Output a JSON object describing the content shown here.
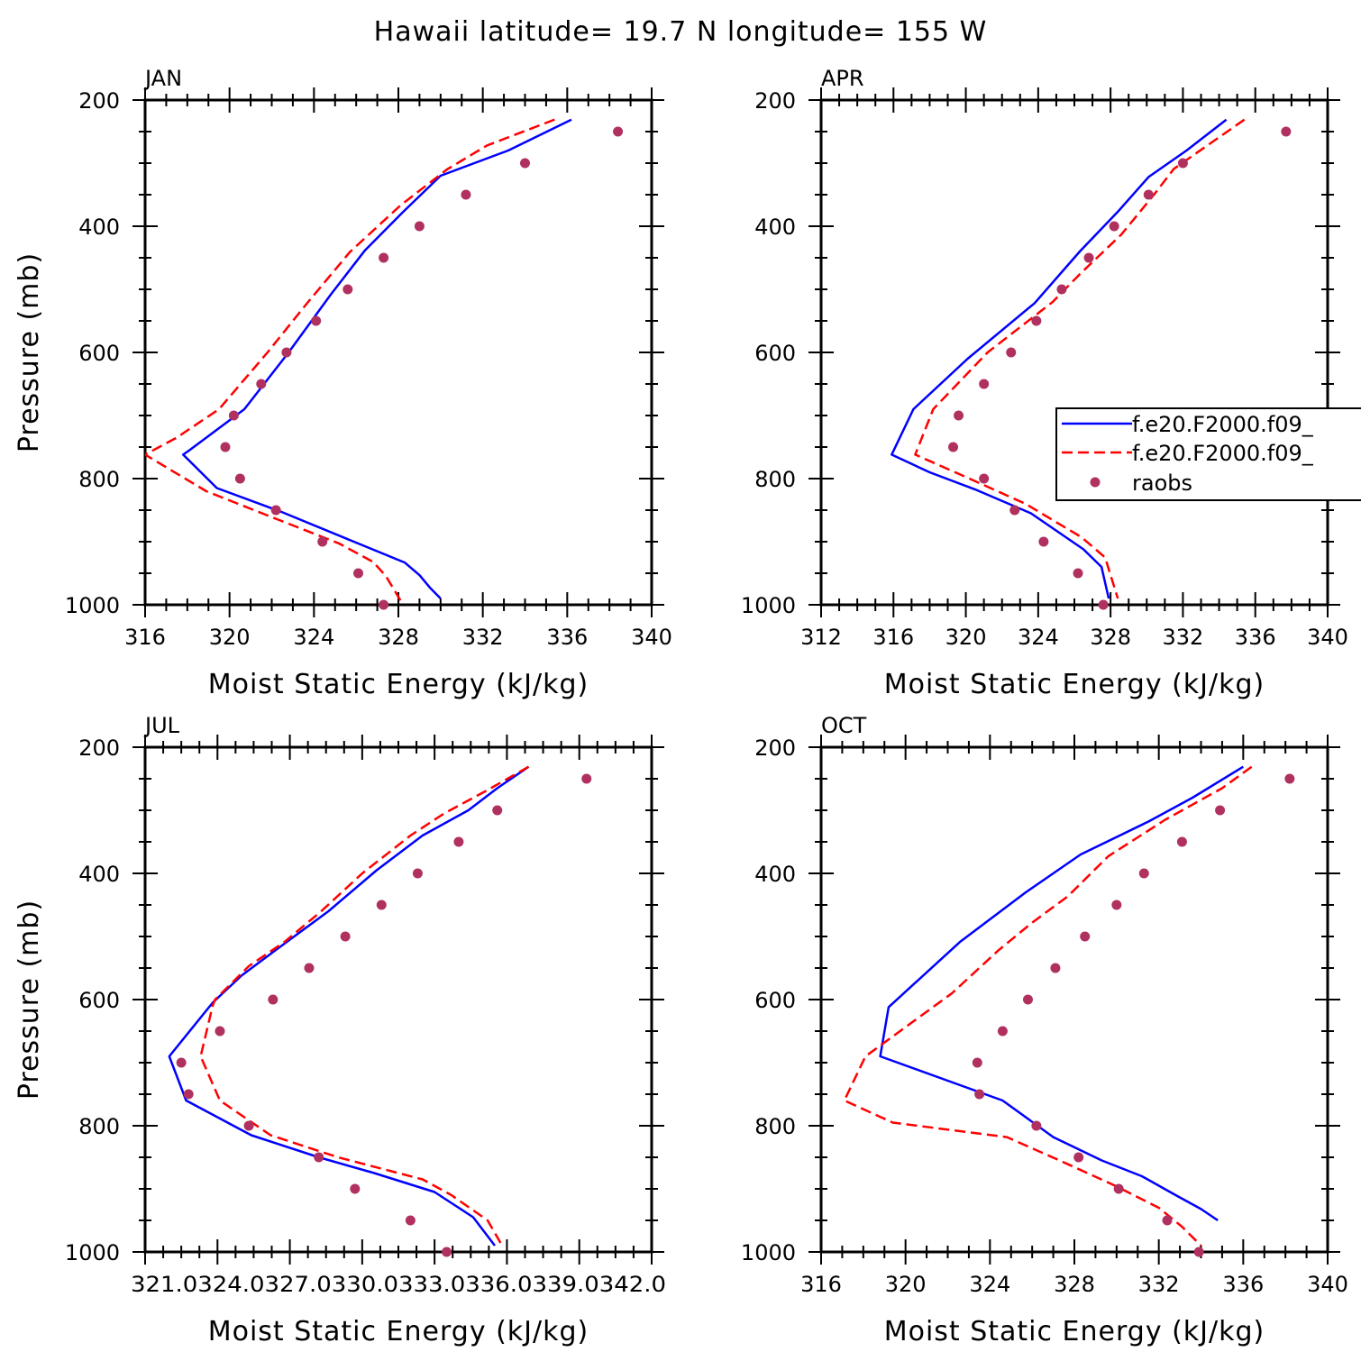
{
  "title": "Hawaii  latitude= 19.7 N longitude= 155 W",
  "legend": {
    "entries": [
      {
        "label": "f.e20.F2000.f09_",
        "color": "#0000ff",
        "style": "solid"
      },
      {
        "label": "f.e20.F2000.f09_",
        "color": "#ff0000",
        "style": "dashed"
      },
      {
        "label": "raobs",
        "color": "#b03060",
        "style": "marker"
      }
    ]
  },
  "colors": {
    "model_solid": "#0000ff",
    "model_dashed": "#ff0000",
    "raobs": "#b03060"
  },
  "chart_data": [
    {
      "type": "line",
      "title": "JAN",
      "xlabel": "Moist Static Energy (kJ/kg)",
      "ylabel": "Pressure (mb)",
      "xlim": [
        316,
        340
      ],
      "ylim": [
        200,
        1000
      ],
      "y_inverted": true,
      "xticks": [
        316,
        320,
        324,
        328,
        332,
        336,
        340
      ],
      "xtick_labels": [
        "316",
        "320",
        "324",
        "328",
        "332",
        "336",
        "340"
      ],
      "yticks": [
        200,
        400,
        600,
        800,
        1000
      ],
      "ytick_labels": [
        "200",
        "400",
        "600",
        "800",
        "1000"
      ],
      "series": [
        {
          "color": "#0000ff",
          "style": "solid",
          "x": [
            336.2,
            333.2,
            330.0,
            328.2,
            326.4,
            324.8,
            322.8,
            320.7,
            318.1,
            317.8,
            319.4,
            322.4,
            326.4,
            328.3,
            329.0,
            329.5,
            330.0
          ],
          "y": [
            231,
            280,
            320,
            378,
            439,
            508,
            600,
            690,
            755,
            762,
            815,
            852,
            907,
            933,
            953,
            973,
            990
          ]
        },
        {
          "color": "#ff0000",
          "style": "dashed",
          "x": [
            335.4,
            332.2,
            330.3,
            328.1,
            325.7,
            323.6,
            321.8,
            319.5,
            317.5,
            316.0,
            318.9,
            322.3,
            325.2,
            326.8,
            327.4,
            328.1
          ],
          "y": [
            231,
            272,
            310,
            367,
            441,
            525,
            600,
            690,
            735,
            762,
            820,
            865,
            903,
            932,
            954,
            993
          ]
        },
        {
          "color": "#b03060",
          "style": "marker",
          "x": [
            338.4,
            334.0,
            331.2,
            329.0,
            327.3,
            325.6,
            324.1,
            322.7,
            321.5,
            320.2,
            319.8,
            320.5,
            322.2,
            324.4,
            326.1,
            327.3
          ],
          "y": [
            250,
            300,
            350,
            400,
            450,
            500,
            550,
            600,
            650,
            700,
            750,
            800,
            850,
            900,
            950,
            1000
          ]
        }
      ]
    },
    {
      "type": "line",
      "title": "APR",
      "xlabel": "Moist Static Energy (kJ/kg)",
      "ylabel": "",
      "xlim": [
        312,
        340
      ],
      "ylim": [
        200,
        1000
      ],
      "y_inverted": true,
      "xticks": [
        312,
        316,
        320,
        324,
        328,
        332,
        336,
        340
      ],
      "xtick_labels": [
        "312",
        "316",
        "320",
        "324",
        "328",
        "332",
        "336",
        "340"
      ],
      "yticks": [
        200,
        400,
        600,
        800,
        1000
      ],
      "ytick_labels": [
        "200",
        "400",
        "600",
        "800",
        "1000"
      ],
      "series": [
        {
          "color": "#0000ff",
          "style": "solid",
          "x": [
            334.4,
            332.2,
            330.1,
            328.4,
            326.3,
            323.8,
            320.1,
            317.1,
            315.9,
            318.0,
            320.5,
            323.6,
            326.5,
            327.5,
            327.9
          ],
          "y": [
            231,
            280,
            322,
            377,
            440,
            522,
            610,
            690,
            762,
            790,
            817,
            855,
            912,
            940,
            990
          ]
        },
        {
          "color": "#ff0000",
          "style": "dashed",
          "x": [
            335.4,
            333.2,
            331.5,
            330.4,
            328.6,
            326.3,
            324.8,
            321.2,
            318.2,
            317.2,
            320.2,
            323.3,
            326.4,
            327.7,
            328.4
          ],
          "y": [
            231,
            275,
            309,
            350,
            413,
            476,
            520,
            600,
            690,
            762,
            800,
            840,
            893,
            925,
            990
          ]
        },
        {
          "color": "#b03060",
          "style": "marker",
          "x": [
            337.7,
            332.0,
            330.1,
            328.2,
            326.8,
            325.3,
            323.9,
            322.5,
            321.0,
            319.6,
            319.3,
            321.0,
            322.7,
            324.3,
            326.2,
            327.6
          ],
          "y": [
            250,
            300,
            350,
            400,
            450,
            500,
            550,
            600,
            650,
            700,
            750,
            800,
            850,
            900,
            950,
            1000
          ]
        }
      ]
    },
    {
      "type": "line",
      "title": "JUL",
      "xlabel": "Moist Static Energy (kJ/kg)",
      "ylabel": "Pressure (mb)",
      "xlim": [
        321.0,
        342.0
      ],
      "ylim": [
        200,
        1000
      ],
      "y_inverted": true,
      "xticks": [
        321.0,
        324.0,
        327.0,
        330.0,
        333.0,
        336.0,
        339.0,
        342.0
      ],
      "xtick_labels": [
        "321.0",
        "324.0",
        "327.0",
        "330.0",
        "333.0",
        "336.0",
        "339.0",
        "342.0"
      ],
      "xtick_text": "321.0324.0327.0330.0333.0336.0339.0342.0",
      "yticks": [
        200,
        400,
        600,
        800,
        1000
      ],
      "ytick_labels": [
        "200",
        "400",
        "600",
        "800",
        "1000"
      ],
      "series": [
        {
          "color": "#0000ff",
          "style": "solid",
          "x": [
            336.9,
            335.6,
            334.4,
            332.5,
            330.6,
            328.6,
            326.4,
            325.0,
            323.8,
            322.0,
            322.7,
            325.4,
            328.2,
            330.5,
            333.0,
            334.6,
            335.5
          ],
          "y": [
            231,
            265,
            300,
            340,
            395,
            460,
            522,
            562,
            605,
            690,
            760,
            815,
            850,
            875,
            905,
            945,
            990
          ]
        },
        {
          "color": "#ff0000",
          "style": "dashed",
          "x": [
            336.9,
            335.1,
            333.4,
            332.0,
            330.0,
            328.3,
            326.8,
            325.3,
            323.9,
            323.8,
            323.3,
            324.1,
            326.2,
            329.0,
            332.5,
            333.7,
            335.2,
            335.8
          ],
          "y": [
            231,
            270,
            305,
            340,
            400,
            460,
            508,
            547,
            600,
            610,
            690,
            760,
            815,
            850,
            885,
            910,
            950,
            990
          ]
        },
        {
          "color": "#b03060",
          "style": "marker",
          "x": [
            339.3,
            335.6,
            334.0,
            332.3,
            330.8,
            329.3,
            327.8,
            326.3,
            324.1,
            322.5,
            322.8,
            325.3,
            328.2,
            329.7,
            332.0,
            333.5
          ],
          "y": [
            250,
            300,
            350,
            400,
            450,
            500,
            550,
            600,
            650,
            700,
            750,
            800,
            850,
            900,
            950,
            1000
          ]
        }
      ]
    },
    {
      "type": "line",
      "title": "OCT",
      "xlabel": "Moist Static Energy (kJ/kg)",
      "ylabel": "",
      "xlim": [
        316,
        340
      ],
      "ylim": [
        200,
        1000
      ],
      "y_inverted": true,
      "xticks": [
        316,
        320,
        324,
        328,
        332,
        336,
        340
      ],
      "xtick_labels": [
        "316",
        "320",
        "324",
        "328",
        "332",
        "336",
        "340"
      ],
      "yticks": [
        200,
        400,
        600,
        800,
        1000
      ],
      "ytick_labels": [
        "200",
        "400",
        "600",
        "800",
        "1000"
      ],
      "series": [
        {
          "color": "#0000ff",
          "style": "solid",
          "x": [
            336.0,
            333.6,
            331.5,
            328.3,
            325.7,
            322.6,
            319.2,
            318.8,
            324.6,
            327.0,
            329.3,
            331.2,
            332.8,
            334.0,
            334.8
          ],
          "y": [
            231,
            280,
            318,
            370,
            430,
            508,
            612,
            690,
            760,
            818,
            855,
            880,
            910,
            932,
            950
          ]
        },
        {
          "color": "#ff0000",
          "style": "dashed",
          "x": [
            336.4,
            335.0,
            332.3,
            329.6,
            327.7,
            326.0,
            324.4,
            322.2,
            318.1,
            317.1,
            319.4,
            324.8,
            327.3,
            329.8,
            332.0,
            333.1,
            334.0
          ],
          "y": [
            231,
            265,
            315,
            373,
            436,
            478,
            522,
            590,
            690,
            760,
            795,
            818,
            855,
            893,
            930,
            960,
            990
          ]
        },
        {
          "color": "#b03060",
          "style": "marker",
          "x": [
            338.2,
            334.9,
            333.1,
            331.3,
            330.0,
            328.5,
            327.1,
            325.8,
            324.6,
            323.4,
            323.5,
            326.2,
            328.2,
            330.1,
            332.4,
            333.9
          ],
          "y": [
            250,
            300,
            350,
            400,
            450,
            500,
            550,
            600,
            650,
            700,
            750,
            800,
            850,
            900,
            950,
            1000
          ]
        }
      ]
    }
  ]
}
